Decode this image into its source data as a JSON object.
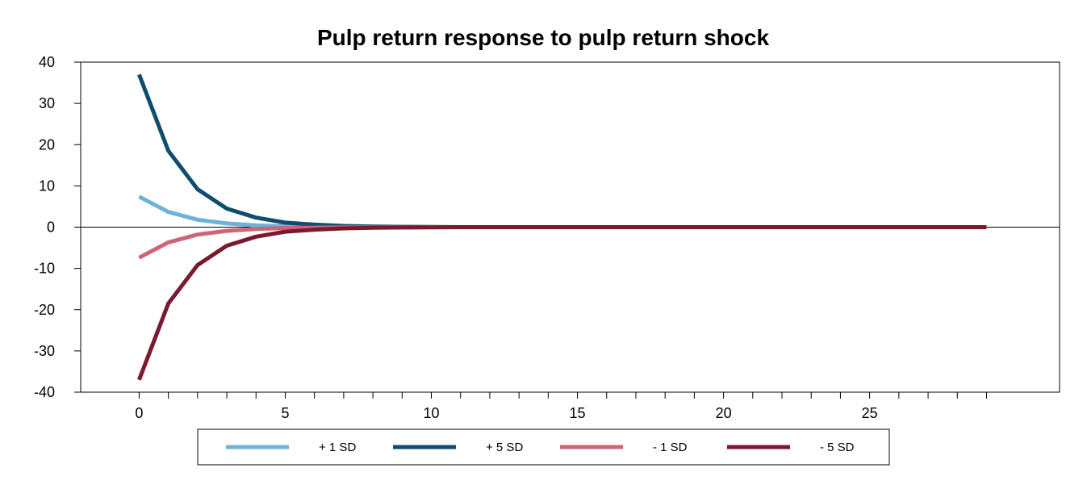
{
  "chart_data": {
    "type": "line",
    "title": "Pulp return response to pulp return shock",
    "xlabel": "",
    "ylabel": "",
    "xlim": [
      -2,
      31.5
    ],
    "ylim": [
      -40,
      40
    ],
    "x_ticks": [
      0,
      5,
      10,
      15,
      20,
      25
    ],
    "y_ticks": [
      40,
      30,
      20,
      10,
      0,
      -10,
      -20,
      -30,
      -40
    ],
    "grid": false,
    "legend_position": "bottom",
    "x": [
      0,
      1,
      2,
      3,
      4,
      5,
      6,
      7,
      8,
      9,
      10,
      11,
      12,
      13,
      14,
      15,
      16,
      17,
      18,
      19,
      20,
      21,
      22,
      23,
      24,
      25,
      26,
      27,
      28,
      29
    ],
    "series": [
      {
        "name": "+ 1 SD",
        "color": "#6FB2D8",
        "values": [
          7.4,
          3.7,
          1.8,
          0.9,
          0.45,
          0.22,
          0.11,
          0.06,
          0.03,
          0.01,
          0,
          0,
          0,
          0,
          0,
          0,
          0,
          0,
          0,
          0,
          0,
          0,
          0,
          0,
          0,
          0,
          0,
          0,
          0,
          0
        ]
      },
      {
        "name": "+ 5 SD",
        "color": "#0F4C6E",
        "values": [
          37,
          18.5,
          9.2,
          4.5,
          2.3,
          1.1,
          0.6,
          0.3,
          0.15,
          0.07,
          0.03,
          0,
          0,
          0,
          0,
          0,
          0,
          0,
          0,
          0,
          0,
          0,
          0,
          0,
          0,
          0,
          0,
          0,
          0,
          0
        ]
      },
      {
        "name": "- 1 SD",
        "color": "#CC6677",
        "values": [
          -7.4,
          -3.7,
          -1.8,
          -0.9,
          -0.45,
          -0.22,
          -0.11,
          -0.06,
          -0.03,
          -0.01,
          0,
          0,
          0,
          0,
          0,
          0,
          0,
          0,
          0,
          0,
          0,
          0,
          0,
          0,
          0,
          0,
          0,
          0,
          0,
          0
        ]
      },
      {
        "name": "- 5 SD",
        "color": "#7B1A2E",
        "values": [
          -37,
          -18.5,
          -9.2,
          -4.5,
          -2.3,
          -1.1,
          -0.6,
          -0.3,
          -0.15,
          -0.07,
          -0.03,
          0,
          0,
          0,
          0,
          0,
          0,
          0,
          0,
          0,
          0,
          0,
          0,
          0,
          0,
          0,
          0,
          0,
          0,
          0
        ]
      }
    ]
  }
}
